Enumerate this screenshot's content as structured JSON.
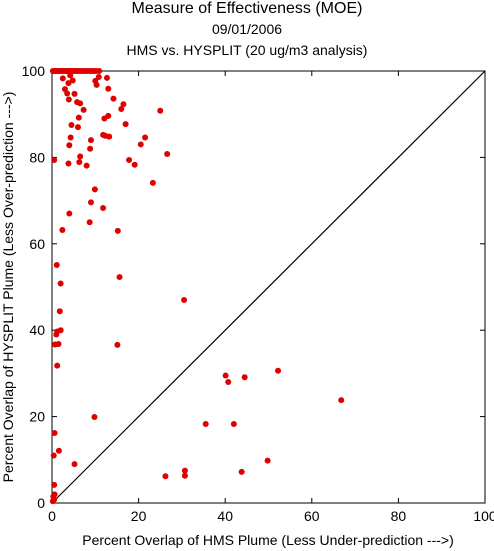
{
  "chart_data": {
    "type": "scatter",
    "title": "Measure of Effectiveness (MOE)",
    "subtitle": "09/01/2006",
    "subtitle2": "HMS vs. HYSPLIT  (20 ug/m3 analysis)",
    "xlabel": "Percent Overlap of HMS Plume (Less Under-prediction --->)",
    "ylabel": "Percent Overlap of HYSPLIT Plume (Less Over-prediction --->)",
    "xlim": [
      0,
      100
    ],
    "ylim": [
      0,
      100
    ],
    "xticks": [
      0,
      20,
      40,
      60,
      80,
      100
    ],
    "yticks": [
      0,
      20,
      40,
      60,
      80,
      100
    ],
    "grid": false,
    "point_color": "#e00000",
    "reference_line": {
      "from": [
        0,
        0
      ],
      "to": [
        100,
        100
      ]
    },
    "points": [
      [
        0.2,
        100
      ],
      [
        0.5,
        100
      ],
      [
        0.8,
        100
      ],
      [
        1.0,
        100
      ],
      [
        1.3,
        100
      ],
      [
        1.6,
        100
      ],
      [
        2.0,
        100
      ],
      [
        2.3,
        100
      ],
      [
        2.6,
        100
      ],
      [
        3.0,
        100
      ],
      [
        3.3,
        100
      ],
      [
        3.6,
        100
      ],
      [
        4.0,
        100
      ],
      [
        4.3,
        100
      ],
      [
        4.6,
        100
      ],
      [
        5.0,
        100
      ],
      [
        5.4,
        100
      ],
      [
        5.8,
        100
      ],
      [
        6.3,
        100
      ],
      [
        6.8,
        100
      ],
      [
        7.2,
        100
      ],
      [
        7.7,
        100
      ],
      [
        8.2,
        100
      ],
      [
        8.7,
        100
      ],
      [
        9.2,
        100
      ],
      [
        9.7,
        100
      ],
      [
        10.2,
        100
      ],
      [
        10.9,
        100
      ],
      [
        2.5,
        98.3
      ],
      [
        3.8,
        97.2
      ],
      [
        4.2,
        99.0
      ],
      [
        4.8,
        97.8
      ],
      [
        3.0,
        95.8
      ],
      [
        3.5,
        94.8
      ],
      [
        3.9,
        93.4
      ],
      [
        5.2,
        94.7
      ],
      [
        5.8,
        92.8
      ],
      [
        6.5,
        92.5
      ],
      [
        7.3,
        91.0
      ],
      [
        6.2,
        89.2
      ],
      [
        4.5,
        87.5
      ],
      [
        6.0,
        87.0
      ],
      [
        10.0,
        97.7
      ],
      [
        10.8,
        98.6
      ],
      [
        10.3,
        96.8
      ],
      [
        12.7,
        98.4
      ],
      [
        13.0,
        95.9
      ],
      [
        12.1,
        89.0
      ],
      [
        13.0,
        89.6
      ],
      [
        14.2,
        93.6
      ],
      [
        16.0,
        91.2
      ],
      [
        16.5,
        92.3
      ],
      [
        17.0,
        87.7
      ],
      [
        25.0,
        90.8
      ],
      [
        4.3,
        84.6
      ],
      [
        4.0,
        82.8
      ],
      [
        6.5,
        80.2
      ],
      [
        6.3,
        78.9
      ],
      [
        3.8,
        78.6
      ],
      [
        9.0,
        84.0
      ],
      [
        8.8,
        82.0
      ],
      [
        11.8,
        85.2
      ],
      [
        12.3,
        85.0
      ],
      [
        13.2,
        84.8
      ],
      [
        8.0,
        78.1
      ],
      [
        17.8,
        79.4
      ],
      [
        19.1,
        78.3
      ],
      [
        20.5,
        83.0
      ],
      [
        21.5,
        84.6
      ],
      [
        26.6,
        80.8
      ],
      [
        23.3,
        74.1
      ],
      [
        9.9,
        72.6
      ],
      [
        0.5,
        79.4
      ],
      [
        9.0,
        69.6
      ],
      [
        11.8,
        68.3
      ],
      [
        4.0,
        67.0
      ],
      [
        8.7,
        65.0
      ],
      [
        2.4,
        63.2
      ],
      [
        15.2,
        63.0
      ],
      [
        1.1,
        55.1
      ],
      [
        15.6,
        52.3
      ],
      [
        2.0,
        50.8
      ],
      [
        30.5,
        47.0
      ],
      [
        1.8,
        44.4
      ],
      [
        2.0,
        40.0
      ],
      [
        1.2,
        39.7
      ],
      [
        1.0,
        39.0
      ],
      [
        0.7,
        36.7
      ],
      [
        1.5,
        36.8
      ],
      [
        15.1,
        36.6
      ],
      [
        1.2,
        31.8
      ],
      [
        40.1,
        29.5
      ],
      [
        40.7,
        28.0
      ],
      [
        44.5,
        29.1
      ],
      [
        52.2,
        30.6
      ],
      [
        66.8,
        23.8
      ],
      [
        9.8,
        19.9
      ],
      [
        35.5,
        18.3
      ],
      [
        42.0,
        18.3
      ],
      [
        0.6,
        16.2
      ],
      [
        0.4,
        11.0
      ],
      [
        1.6,
        12.1
      ],
      [
        5.2,
        9.0
      ],
      [
        30.7,
        7.5
      ],
      [
        30.7,
        6.3
      ],
      [
        43.8,
        7.2
      ],
      [
        49.8,
        9.8
      ],
      [
        26.2,
        6.2
      ],
      [
        0.5,
        4.2
      ],
      [
        0.6,
        2.0
      ],
      [
        0.3,
        1.5
      ],
      [
        0.5,
        0.8
      ],
      [
        0.2,
        0.4
      ]
    ]
  }
}
